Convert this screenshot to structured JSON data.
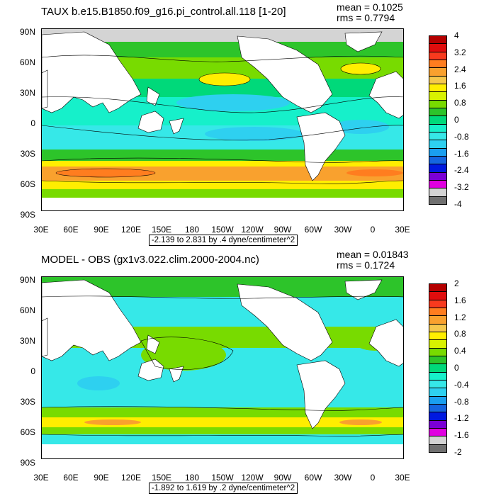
{
  "panels": [
    {
      "title": "TAUX b.e15.B1850.f09_g16.pi_control.all.118 [1-20]",
      "stats": {
        "mean": "mean = 0.1025",
        "rms": "rms = 0.7794"
      },
      "range_label": "-2.139 to 2.831 by .4 dyne/centimeter^2",
      "colorbar": {
        "labels": [
          "4",
          "3.2",
          "2.4",
          "1.6",
          "0.8",
          "0",
          "-0.8",
          "-1.6",
          "-2.4",
          "-3.2",
          "-4"
        ],
        "colors": [
          "#b40000",
          "#e00d0d",
          "#f83a1e",
          "#ff7d1f",
          "#f9a12e",
          "#f5c84c",
          "#ffee00",
          "#d8f200",
          "#78db00",
          "#2dc42a",
          "#00d97a",
          "#16f0ca",
          "#36e8e8",
          "#2ed0f0",
          "#1a9ff0",
          "#1565e0",
          "#0019e0",
          "#7a00d6",
          "#e000e0",
          "#d4d4d4",
          "#707070"
        ]
      }
    },
    {
      "title": "MODEL - OBS (gx1v3.022.clim.2000-2004.nc)",
      "stats": {
        "mean": "mean = 0.01843",
        "rms": "rms = 0.1724"
      },
      "range_label": "-1.892 to 1.619 by .2 dyne/centimeter^2",
      "colorbar": {
        "labels": [
          "2",
          "1.6",
          "1.2",
          "0.8",
          "0.4",
          "0",
          "-0.4",
          "-0.8",
          "-1.2",
          "-1.6",
          "-2"
        ],
        "colors": [
          "#b40000",
          "#e00d0d",
          "#f83a1e",
          "#ff7d1f",
          "#f9a12e",
          "#f5c84c",
          "#ffee00",
          "#d8f200",
          "#78db00",
          "#2dc42a",
          "#00d97a",
          "#16f0ca",
          "#36e8e8",
          "#2ed0f0",
          "#1a9ff0",
          "#1565e0",
          "#0019e0",
          "#7a00d6",
          "#e000e0",
          "#d4d4d4",
          "#707070"
        ]
      }
    }
  ],
  "lat_labels": [
    "90N",
    "60N",
    "30N",
    "0",
    "30S",
    "60S",
    "90S"
  ],
  "lon_labels": [
    "30E",
    "60E",
    "90E",
    "120E",
    "150E",
    "180",
    "150W",
    "120W",
    "90W",
    "60W",
    "30W",
    "0",
    "30E"
  ]
}
